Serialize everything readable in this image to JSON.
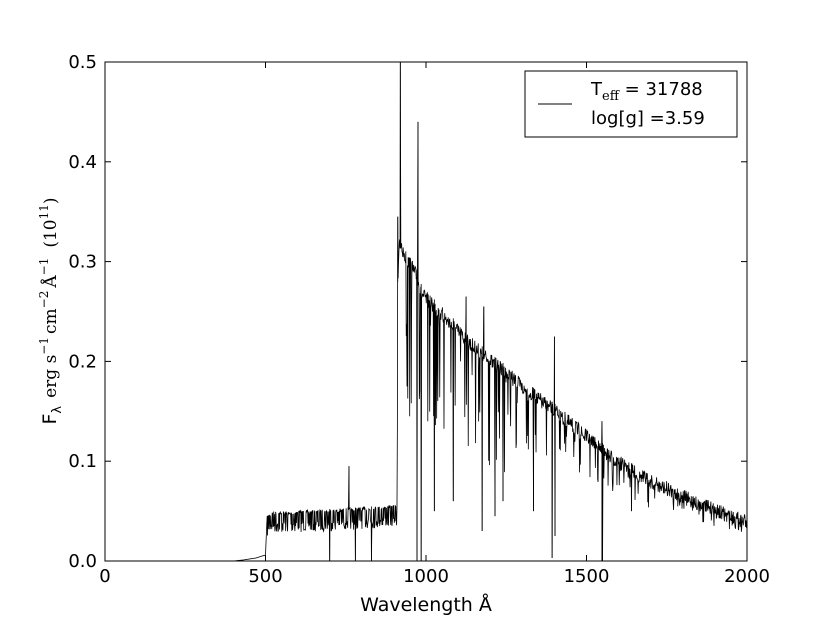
{
  "chart_data": {
    "type": "line",
    "title": "",
    "xlabel": "Wavelength Å",
    "ylabel": {
      "main": "F",
      "sub": "λ",
      "units": "erg s",
      "cm": "cm",
      "angstrom": "Å",
      "exp_neg1": "−1",
      "exp_neg2": "−2",
      "scale_base": "(10",
      "scale_exp": "11",
      "scale_close": ")"
    },
    "xlim": [
      0,
      2000
    ],
    "ylim": [
      0,
      0.5
    ],
    "xticks": [
      0,
      500,
      1000,
      1500,
      2000
    ],
    "xtick_labels": [
      "0",
      "500",
      "1000",
      "1500",
      "2000"
    ],
    "yticks": [
      0.0,
      0.1,
      0.2,
      0.3,
      0.4,
      0.5
    ],
    "ytick_labels": [
      "0.0",
      "0.1",
      "0.2",
      "0.3",
      "0.4",
      "0.5"
    ],
    "grid": false,
    "legend": {
      "placement": "top-right",
      "line1_main": "T",
      "line1_sub": "eff",
      "line1_rest": " = 31788",
      "line2": "log[g] =3.59"
    },
    "series": [
      {
        "color": "#000000",
        "x": [
          0,
          400,
          430,
          470,
          500,
          505,
          510,
          520,
          550,
          580,
          600,
          650,
          700,
          750,
          760,
          800,
          850,
          900,
          910,
          912,
          915,
          920,
          940,
          960,
          975,
          980,
          1000,
          1050,
          1100,
          1150,
          1200,
          1250,
          1300,
          1350,
          1400,
          1450,
          1500,
          1550,
          1600,
          1650,
          1700,
          1750,
          1800,
          1850,
          1900,
          1950,
          2000
        ],
        "y": [
          0,
          0,
          0.001,
          0.003,
          0.006,
          0.045,
          0.048,
          0.05,
          0.05,
          0.05,
          0.051,
          0.051,
          0.052,
          0.053,
          0.053,
          0.054,
          0.055,
          0.056,
          0.057,
          0.28,
          0.32,
          0.325,
          0.31,
          0.3,
          0.29,
          0.28,
          0.27,
          0.255,
          0.238,
          0.222,
          0.208,
          0.196,
          0.182,
          0.17,
          0.158,
          0.145,
          0.132,
          0.118,
          0.106,
          0.096,
          0.087,
          0.08,
          0.072,
          0.065,
          0.058,
          0.052,
          0.046
        ]
      }
    ],
    "features": [
      {
        "x": 920,
        "y": 0.5
      },
      {
        "x": 975,
        "y": 0.44
      },
      {
        "x": 1400,
        "y": 0.225
      },
      {
        "x": 1548,
        "y": 0.14
      },
      {
        "x": 760,
        "y": 0.095
      },
      {
        "x": 912,
        "y": 0.345
      },
      {
        "x": 1125,
        "y": 0.265
      },
      {
        "x": 1180,
        "y": 0.255
      }
    ],
    "dips": [
      {
        "x": 700,
        "y": 0.0
      },
      {
        "x": 780,
        "y": 0.0
      },
      {
        "x": 830,
        "y": 0.0
      },
      {
        "x": 972,
        "y": 0.0
      },
      {
        "x": 985,
        "y": 0.0
      },
      {
        "x": 1026,
        "y": 0.05
      },
      {
        "x": 1085,
        "y": 0.06
      },
      {
        "x": 1175,
        "y": 0.03
      },
      {
        "x": 1215,
        "y": 0.045
      },
      {
        "x": 1240,
        "y": 0.06
      },
      {
        "x": 1335,
        "y": 0.05
      },
      {
        "x": 1393,
        "y": 0.003
      },
      {
        "x": 1402,
        "y": 0.025
      },
      {
        "x": 1548,
        "y": 0.0
      },
      {
        "x": 1550,
        "y": 0.0
      },
      {
        "x": 1640,
        "y": 0.05
      }
    ]
  }
}
